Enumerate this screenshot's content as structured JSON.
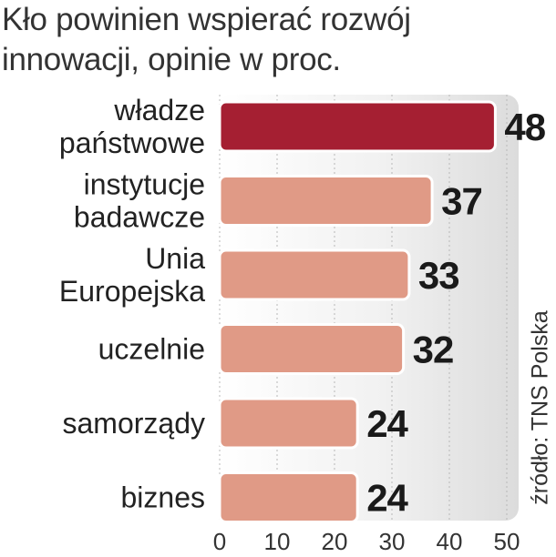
{
  "chart_data": {
    "type": "bar",
    "orientation": "horizontal",
    "title": "Kło powinien wspierać rozwój innowacji, opinie w proc.",
    "source": "źródło: TNS Polska",
    "categories": [
      [
        "władze",
        "państwowe"
      ],
      [
        "instytucje",
        "badawcze"
      ],
      [
        "Unia",
        "Europejska"
      ],
      [
        "uczelnie"
      ],
      [
        "samorządy"
      ],
      [
        "biznes"
      ]
    ],
    "values": [
      48,
      37,
      33,
      32,
      24,
      24
    ],
    "value_labels": [
      "48",
      "37",
      "33",
      "32",
      "24",
      "24"
    ],
    "xlim": [
      0,
      50
    ],
    "xticks": [
      "0",
      "10",
      "20",
      "30",
      "40",
      "50"
    ],
    "colors": {
      "highlight": "#A51F32",
      "bar": "#E09A86",
      "plot_bg": "#E8E8E8"
    },
    "highlight_index": 0
  }
}
